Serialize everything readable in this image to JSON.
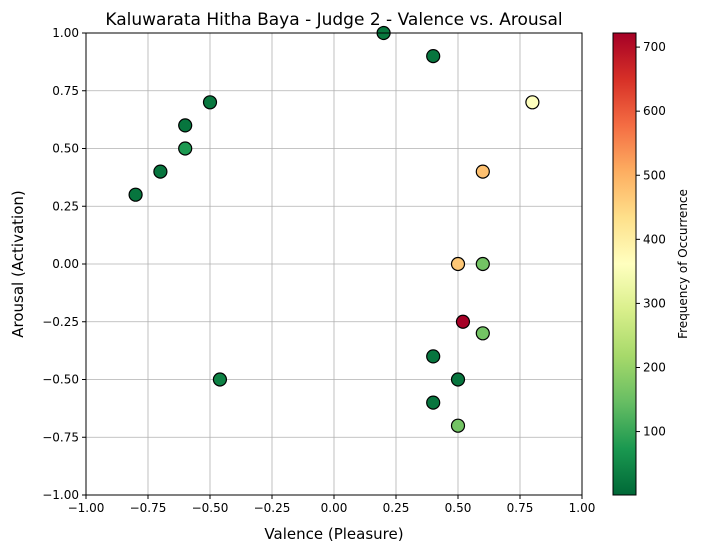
{
  "chart_data": {
    "type": "scatter",
    "title": "Kaluwarata Hitha Baya - Judge 2 - Valence vs. Arousal",
    "xlabel": "Valence (Pleasure)",
    "ylabel": "Arousal (Activation)",
    "xlim": [
      -1.0,
      1.0
    ],
    "ylim": [
      -1.0,
      1.0
    ],
    "xticks": [
      -1.0,
      -0.75,
      -0.5,
      -0.25,
      0.0,
      0.25,
      0.5,
      0.75,
      1.0
    ],
    "yticks": [
      -1.0,
      -0.75,
      -0.5,
      -0.25,
      0.0,
      0.25,
      0.5,
      0.75,
      1.0
    ],
    "xtick_labels": [
      "−1.00",
      "−0.75",
      "−0.50",
      "−0.25",
      "0.00",
      "0.25",
      "0.50",
      "0.75",
      "1.00"
    ],
    "ytick_labels": [
      "−1.00",
      "−0.75",
      "−0.50",
      "−0.25",
      "0.00",
      "0.25",
      "0.50",
      "0.75",
      "1.00"
    ],
    "grid": true,
    "colormap": "RdYlGn_r",
    "colorbar": {
      "label": "Frequency of Occurrence",
      "range": [
        1,
        722
      ],
      "ticks": [
        100,
        200,
        300,
        400,
        500,
        600,
        700
      ],
      "tick_labels": [
        "100",
        "200",
        "300",
        "400",
        "500",
        "600",
        "700"
      ]
    },
    "points": [
      {
        "x": 0.2,
        "y": 1.0,
        "freq": 25
      },
      {
        "x": 0.4,
        "y": 0.9,
        "freq": 20
      },
      {
        "x": -0.5,
        "y": 0.7,
        "freq": 25
      },
      {
        "x": -0.6,
        "y": 0.6,
        "freq": 20
      },
      {
        "x": -0.6,
        "y": 0.5,
        "freq": 75
      },
      {
        "x": -0.7,
        "y": 0.4,
        "freq": 20
      },
      {
        "x": -0.8,
        "y": 0.3,
        "freq": 20
      },
      {
        "x": 0.8,
        "y": 0.7,
        "freq": 360
      },
      {
        "x": 0.6,
        "y": 0.4,
        "freq": 480
      },
      {
        "x": 0.5,
        "y": 0.0,
        "freq": 470
      },
      {
        "x": 0.6,
        "y": 0.0,
        "freq": 160
      },
      {
        "x": 0.52,
        "y": -0.25,
        "freq": 722
      },
      {
        "x": 0.6,
        "y": -0.3,
        "freq": 160
      },
      {
        "x": 0.4,
        "y": -0.4,
        "freq": 20
      },
      {
        "x": -0.46,
        "y": -0.5,
        "freq": 40
      },
      {
        "x": 0.5,
        "y": -0.5,
        "freq": 20
      },
      {
        "x": 0.4,
        "y": -0.6,
        "freq": 20
      },
      {
        "x": 0.5,
        "y": -0.7,
        "freq": 160
      }
    ]
  }
}
